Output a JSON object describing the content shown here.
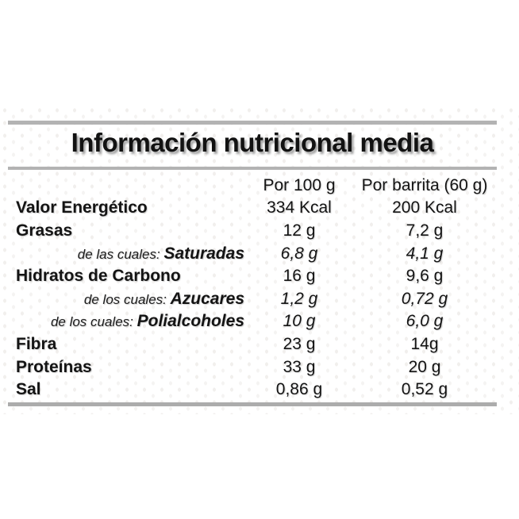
{
  "label": {
    "title": "Información nutricional media",
    "columns": {
      "per100": "Por 100 g",
      "perBar": "Por barrita (60 g)"
    },
    "rows": [
      {
        "qualifier": "",
        "name": "Valor Energético",
        "sub": false,
        "per100": "334 Kcal",
        "perBar": "200 Kcal"
      },
      {
        "qualifier": "",
        "name": "Grasas",
        "sub": false,
        "per100": "12 g",
        "perBar": "7,2 g"
      },
      {
        "qualifier": "de las cuales: ",
        "name": "Saturadas",
        "sub": true,
        "per100": "6,8 g",
        "perBar": "4,1 g"
      },
      {
        "qualifier": "",
        "name": "Hidratos de Carbono",
        "sub": false,
        "per100": "16 g",
        "perBar": "9,6 g"
      },
      {
        "qualifier": "de los cuales: ",
        "name": "Azucares",
        "sub": true,
        "per100": "1,2 g",
        "perBar": "0,72 g"
      },
      {
        "qualifier": "de los cuales: ",
        "name": "Polialcoholes",
        "sub": true,
        "per100": "10 g",
        "perBar": "6,0 g"
      },
      {
        "qualifier": "",
        "name": "Fibra",
        "sub": false,
        "per100": "23 g",
        "perBar": "14g"
      },
      {
        "qualifier": "",
        "name": "Proteínas",
        "sub": false,
        "per100": "33 g",
        "perBar": "20 g"
      },
      {
        "qualifier": "",
        "name": "Sal",
        "sub": false,
        "per100": "0,86 g",
        "perBar": "0,52 g"
      }
    ],
    "colors": {
      "rule": "#b3b3b3",
      "text": "#141414",
      "background": "#ffffff"
    }
  }
}
